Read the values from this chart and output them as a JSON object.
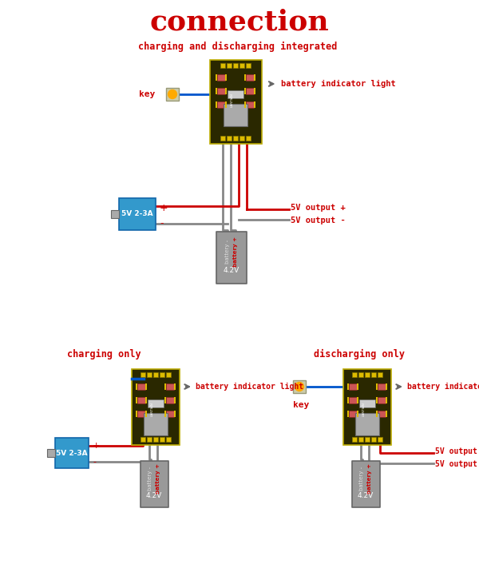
{
  "title": "connection",
  "title_color": "#cc0000",
  "title_fontsize": 26,
  "bg_color": "#ffffff",
  "red": "#cc0000",
  "blue": "#0055cc",
  "gray": "#888888",
  "dark_gray": "#666666",
  "pcb_color": "#2a2800",
  "pcb_border": "#bbaa00",
  "chip_color": "#aaaaaa",
  "charger_blue": "#3399cc",
  "battery_gray": "#999999",
  "yellow": "#ddbb00",
  "pink_res": "#cc5555",
  "section1_title": "charging and discharging integrated",
  "section2_title": "charging only",
  "section3_title": "discharging only",
  "label_key": "key",
  "label_battery_light": "battery indicator light",
  "label_5v_plus": "5V output +",
  "label_5v_minus": "5V output -",
  "label_5v_charger": "5V 2-3A",
  "label_battery_plus": "battery +",
  "label_battery_minus": "battery -",
  "label_4v2": "4.2V"
}
